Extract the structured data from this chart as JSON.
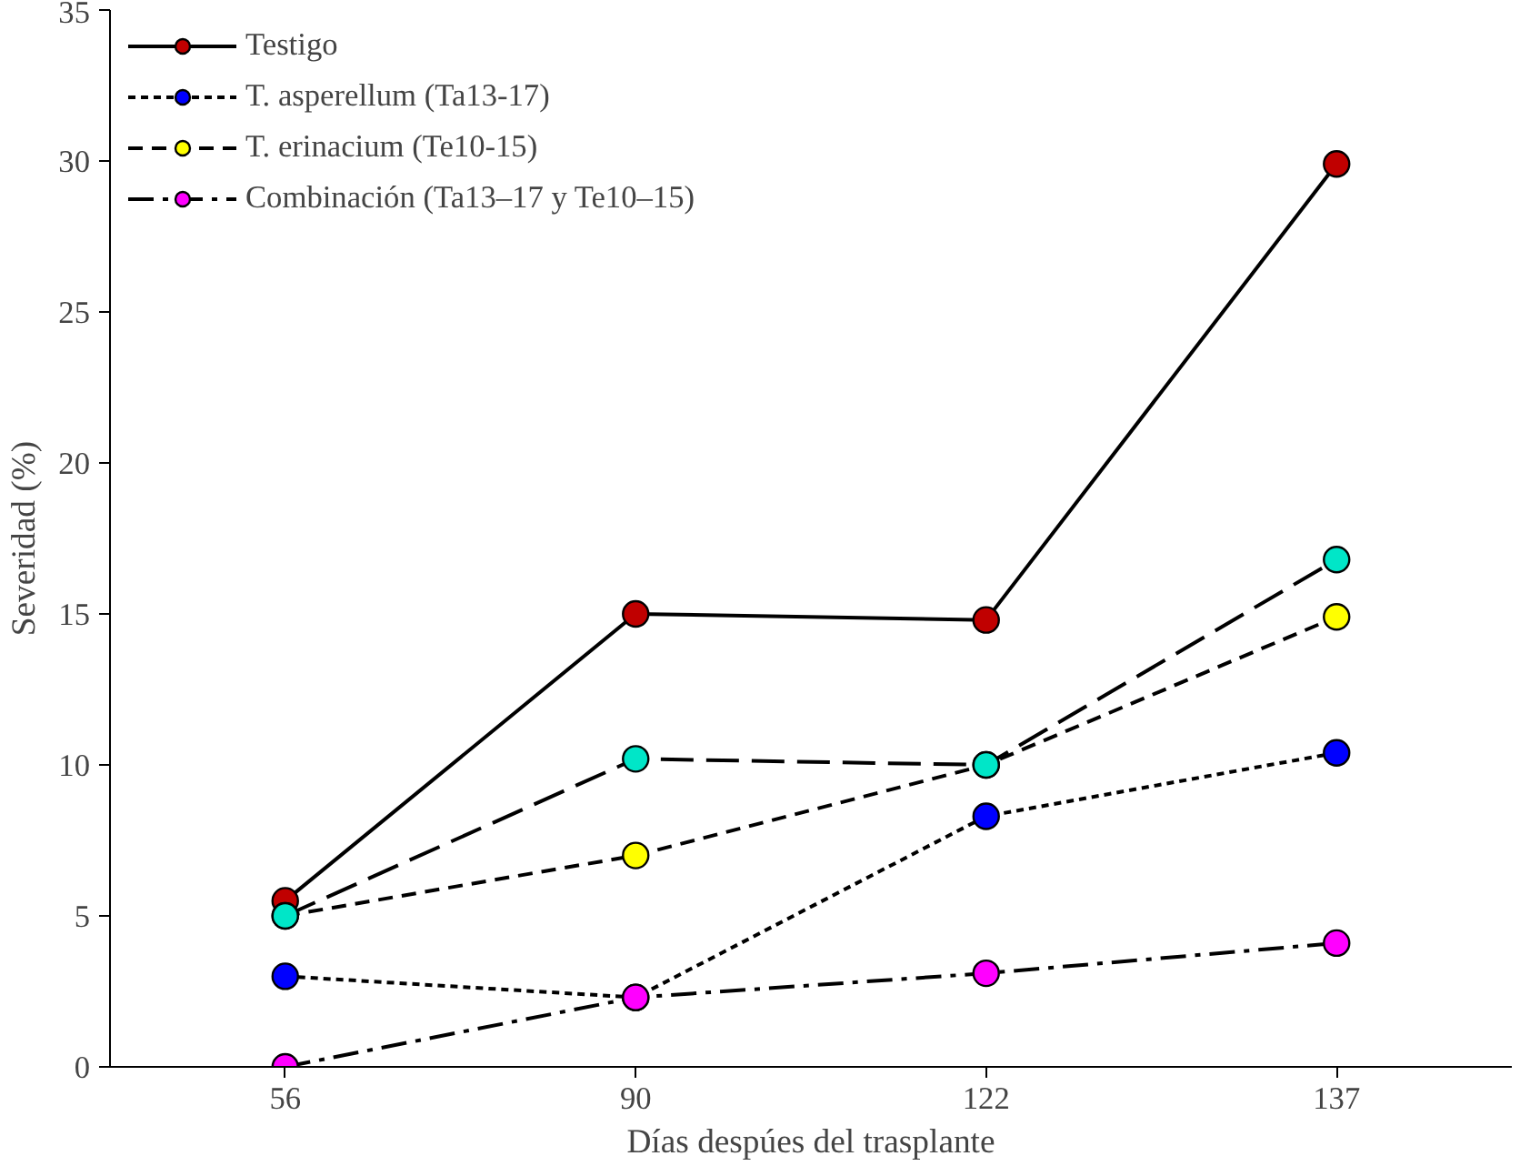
{
  "chart_data": {
    "type": "line",
    "xlabel": "Días despúes del trasplante",
    "ylabel": "Severidad (%)",
    "categories": [
      "56",
      "90",
      "122",
      "137"
    ],
    "ylim": [
      0,
      35
    ],
    "yticks": [
      0,
      5,
      10,
      15,
      20,
      25,
      30,
      35
    ],
    "grid": false,
    "legend": "top left",
    "marker": "circle",
    "series": [
      {
        "name": "Testigo",
        "color": "#c00000",
        "line_style": "solid",
        "values": [
          5.5,
          15.0,
          14.8,
          29.9
        ]
      },
      {
        "name": "T. asperellum (Ta13-17)",
        "color": "#0000ff",
        "line_style": "dotted",
        "values": [
          3.0,
          2.3,
          8.3,
          10.4
        ]
      },
      {
        "name": "T. erinacium (Te10-15)",
        "color": "#ffff00",
        "line_style": "dashed",
        "values": [
          5.0,
          7.0,
          10.0,
          14.9
        ]
      },
      {
        "name": "Combinación (Ta13–17 y Te10–15)",
        "color": "#ff00ff",
        "line_style": "dashdot",
        "values": [
          0.0,
          2.3,
          3.1,
          4.1
        ]
      },
      {
        "color": "#00e6c8",
        "line_style": "longdash",
        "values": [
          5.0,
          10.2,
          10.0,
          16.8
        ]
      }
    ]
  }
}
